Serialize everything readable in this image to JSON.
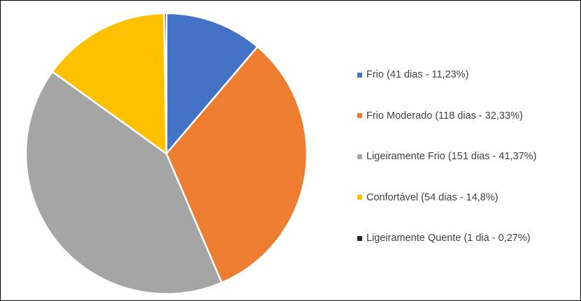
{
  "chart_data": {
    "type": "pie",
    "title": "",
    "legend_position": "right",
    "slices": [
      {
        "label": "Frio (41 dias - 11,23%)",
        "value": 11.23,
        "days": 41,
        "color": "#4472C4"
      },
      {
        "label": "Frio Moderado (118 dias - 32,33%)",
        "value": 32.33,
        "days": 118,
        "color": "#ED7D31"
      },
      {
        "label": "Ligeiramente Frio (151 dias - 41,37%)",
        "value": 41.37,
        "days": 151,
        "color": "#A5A5A5"
      },
      {
        "label": "Confortável (54 dias - 14,8%)",
        "value": 14.8,
        "days": 54,
        "color": "#FFC000"
      },
      {
        "label": "Ligeiramente Quente (1 dia - 0,27%)",
        "value": 0.27,
        "days": 1,
        "color": "#262626"
      }
    ]
  }
}
